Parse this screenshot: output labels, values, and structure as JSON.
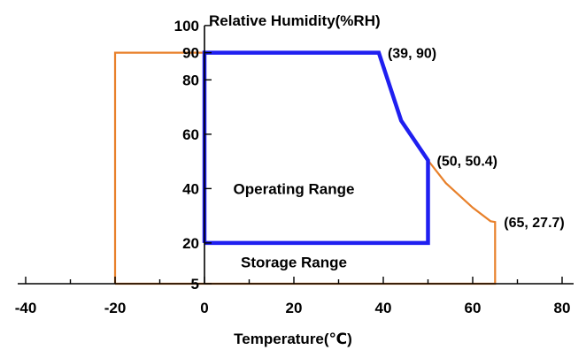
{
  "chart_data": {
    "type": "line",
    "xlabel": "Temperature(℃)",
    "ylabel": "Relative Humidity(%RH)",
    "xlim": [
      -40,
      80
    ],
    "ylim": [
      5,
      100
    ],
    "x_ticks": [
      -40,
      -20,
      0,
      20,
      40,
      60,
      80
    ],
    "y_ticks": [
      5,
      20,
      40,
      60,
      80,
      90,
      100
    ],
    "grid": false,
    "series": [
      {
        "name": "Storage Range",
        "color": "#E8802A",
        "points": [
          [
            -20,
            5
          ],
          [
            -20,
            90
          ],
          [
            39,
            90
          ],
          [
            42,
            75
          ],
          [
            44,
            65
          ],
          [
            50,
            50.4
          ],
          [
            54,
            42
          ],
          [
            60,
            33
          ],
          [
            64,
            28
          ],
          [
            65,
            27.7
          ],
          [
            65,
            5
          ],
          [
            -20,
            5
          ]
        ]
      },
      {
        "name": "Operating Range",
        "color": "#1F1FF0",
        "points": [
          [
            0,
            20
          ],
          [
            0,
            90
          ],
          [
            39,
            90
          ],
          [
            42,
            75
          ],
          [
            44,
            65
          ],
          [
            50,
            50.4
          ],
          [
            50,
            20
          ],
          [
            0,
            20
          ]
        ]
      }
    ],
    "annotations": [
      {
        "text": "(39, 90)",
        "x": 39,
        "y": 90
      },
      {
        "text": "(50, 50.4)",
        "x": 50,
        "y": 50.4
      },
      {
        "text": "(65, 27.7)",
        "x": 65,
        "y": 27.7
      }
    ],
    "region_labels": [
      {
        "text": "Operating Range",
        "x": 20,
        "y": 40
      },
      {
        "text": "Storage Range",
        "x": 20,
        "y": 13
      }
    ]
  }
}
